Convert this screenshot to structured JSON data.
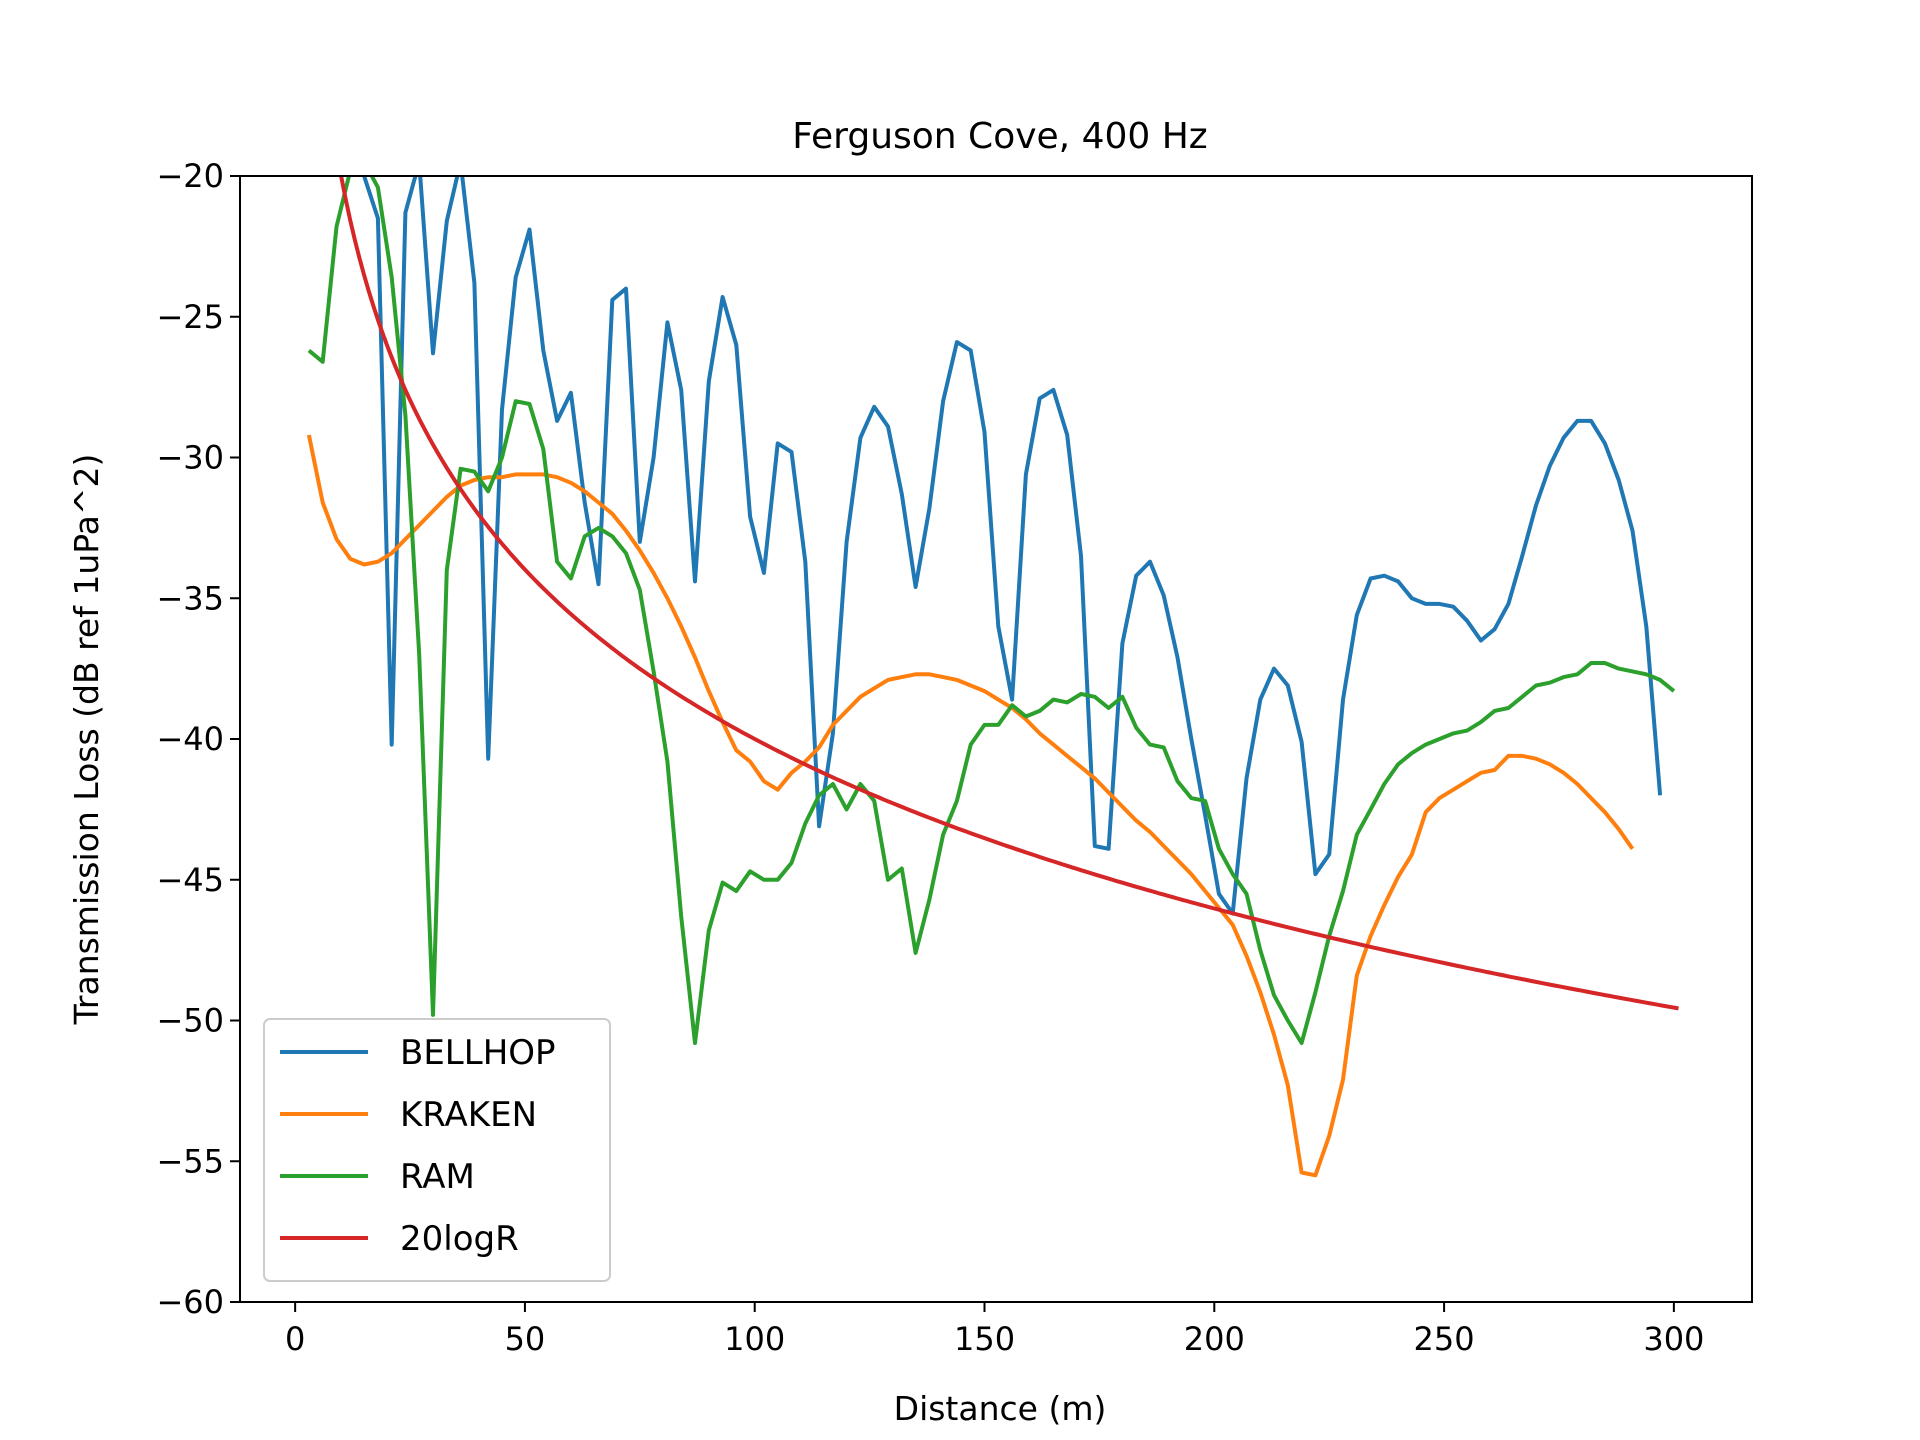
{
  "chart_data": {
    "type": "line",
    "title": "Ferguson Cove, 400 Hz",
    "xlabel": "Distance (m)",
    "ylabel": "Transmission Loss (dB ref 1uPa^2)",
    "xlim": [
      -12,
      317
    ],
    "ylim": [
      -60,
      -20
    ],
    "xticks": [
      0,
      50,
      100,
      150,
      200,
      250,
      300
    ],
    "yticks": [
      -20,
      -25,
      -30,
      -35,
      -40,
      -45,
      -50,
      -55,
      -60
    ],
    "xtick_labels": [
      "0",
      "50",
      "100",
      "150",
      "200",
      "250",
      "300"
    ],
    "ytick_labels": [
      "−20",
      "−25",
      "−30",
      "−35",
      "−40",
      "−45",
      "−50",
      "−55",
      "−60"
    ],
    "grid": false,
    "legend_position": "lower-left",
    "series": [
      {
        "name": "BELLHOP",
        "color": "#1f77b4",
        "points": [
          [
            9,
            -19.5
          ],
          [
            12,
            -19.6
          ],
          [
            15,
            -20
          ],
          [
            18,
            -21.5
          ],
          [
            21,
            -40.2
          ],
          [
            24,
            -21.3
          ],
          [
            27,
            -19.5
          ],
          [
            30,
            -26.3
          ],
          [
            33,
            -21.6
          ],
          [
            36,
            -19.5
          ],
          [
            39,
            -23.8
          ],
          [
            42,
            -40.7
          ],
          [
            45,
            -28.3
          ],
          [
            48,
            -23.6
          ],
          [
            51,
            -21.9
          ],
          [
            54,
            -26.2
          ],
          [
            57,
            -28.7
          ],
          [
            60,
            -27.7
          ],
          [
            63,
            -31.6
          ],
          [
            66,
            -34.5
          ],
          [
            69,
            -24.4
          ],
          [
            72,
            -24
          ],
          [
            75,
            -33
          ],
          [
            78,
            -30
          ],
          [
            81,
            -25.2
          ],
          [
            84,
            -27.6
          ],
          [
            87,
            -34.4
          ],
          [
            90,
            -27.3
          ],
          [
            93,
            -24.3
          ],
          [
            96,
            -26
          ],
          [
            99,
            -32.1
          ],
          [
            102,
            -34.1
          ],
          [
            105,
            -29.5
          ],
          [
            108,
            -29.8
          ],
          [
            111,
            -33.7
          ],
          [
            114,
            -43.1
          ],
          [
            117,
            -39.8
          ],
          [
            120,
            -33
          ],
          [
            123,
            -29.3
          ],
          [
            126,
            -28.2
          ],
          [
            129,
            -28.9
          ],
          [
            132,
            -31.3
          ],
          [
            135,
            -34.6
          ],
          [
            138,
            -31.8
          ],
          [
            141,
            -28
          ],
          [
            144,
            -25.9
          ],
          [
            147,
            -26.2
          ],
          [
            150,
            -29.1
          ],
          [
            153,
            -36
          ],
          [
            156,
            -38.6
          ],
          [
            159,
            -30.6
          ],
          [
            162,
            -27.9
          ],
          [
            165,
            -27.6
          ],
          [
            168,
            -29.2
          ],
          [
            171,
            -33.5
          ],
          [
            174,
            -43.8
          ],
          [
            177,
            -43.9
          ],
          [
            180,
            -36.6
          ],
          [
            183,
            -34.2
          ],
          [
            186,
            -33.7
          ],
          [
            189,
            -34.9
          ],
          [
            192,
            -37.1
          ],
          [
            195,
            -40
          ],
          [
            198,
            -42.7
          ],
          [
            201,
            -45.5
          ],
          [
            204,
            -46.2
          ],
          [
            207,
            -41.4
          ],
          [
            210,
            -38.6
          ],
          [
            213,
            -37.5
          ],
          [
            216,
            -38.1
          ],
          [
            219,
            -40.1
          ],
          [
            222,
            -44.8
          ],
          [
            225,
            -44.1
          ],
          [
            228,
            -38.6
          ],
          [
            231,
            -35.6
          ],
          [
            234,
            -34.3
          ],
          [
            237,
            -34.2
          ],
          [
            240,
            -34.4
          ],
          [
            243,
            -35
          ],
          [
            246,
            -35.2
          ],
          [
            249,
            -35.2
          ],
          [
            252,
            -35.3
          ],
          [
            255,
            -35.8
          ],
          [
            258,
            -36.5
          ],
          [
            261,
            -36.1
          ],
          [
            264,
            -35.2
          ],
          [
            267,
            -33.5
          ],
          [
            270,
            -31.7
          ],
          [
            273,
            -30.3
          ],
          [
            276,
            -29.3
          ],
          [
            279,
            -28.7
          ],
          [
            282,
            -28.7
          ],
          [
            285,
            -29.5
          ],
          [
            288,
            -30.8
          ],
          [
            291,
            -32.6
          ],
          [
            294,
            -36
          ],
          [
            297,
            -42
          ]
        ]
      },
      {
        "name": "KRAKEN",
        "color": "#ff7f0e",
        "points": [
          [
            3,
            -29.2
          ],
          [
            6,
            -31.6
          ],
          [
            9,
            -32.9
          ],
          [
            12,
            -33.6
          ],
          [
            15,
            -33.8
          ],
          [
            18,
            -33.7
          ],
          [
            21,
            -33.4
          ],
          [
            24,
            -32.9
          ],
          [
            27,
            -32.4
          ],
          [
            30,
            -31.9
          ],
          [
            33,
            -31.4
          ],
          [
            36,
            -31
          ],
          [
            39,
            -30.8
          ],
          [
            42,
            -30.7
          ],
          [
            45,
            -30.7
          ],
          [
            48,
            -30.6
          ],
          [
            51,
            -30.6
          ],
          [
            54,
            -30.6
          ],
          [
            57,
            -30.7
          ],
          [
            60,
            -30.9
          ],
          [
            63,
            -31.2
          ],
          [
            66,
            -31.6
          ],
          [
            69,
            -32
          ],
          [
            72,
            -32.6
          ],
          [
            75,
            -33.3
          ],
          [
            78,
            -34.1
          ],
          [
            81,
            -35
          ],
          [
            84,
            -36
          ],
          [
            87,
            -37.1
          ],
          [
            90,
            -38.3
          ],
          [
            93,
            -39.4
          ],
          [
            96,
            -40.4
          ],
          [
            99,
            -40.8
          ],
          [
            102,
            -41.5
          ],
          [
            105,
            -41.8
          ],
          [
            108,
            -41.2
          ],
          [
            111,
            -40.8
          ],
          [
            114,
            -40.3
          ],
          [
            117,
            -39.5
          ],
          [
            120,
            -39
          ],
          [
            123,
            -38.5
          ],
          [
            126,
            -38.2
          ],
          [
            129,
            -37.9
          ],
          [
            132,
            -37.8
          ],
          [
            135,
            -37.7
          ],
          [
            138,
            -37.7
          ],
          [
            141,
            -37.8
          ],
          [
            144,
            -37.9
          ],
          [
            147,
            -38.1
          ],
          [
            150,
            -38.3
          ],
          [
            153,
            -38.6
          ],
          [
            156,
            -38.9
          ],
          [
            159,
            -39.3
          ],
          [
            162,
            -39.8
          ],
          [
            165,
            -40.2
          ],
          [
            168,
            -40.6
          ],
          [
            171,
            -41
          ],
          [
            174,
            -41.4
          ],
          [
            177,
            -41.9
          ],
          [
            180,
            -42.4
          ],
          [
            183,
            -42.9
          ],
          [
            186,
            -43.3
          ],
          [
            189,
            -43.8
          ],
          [
            192,
            -44.3
          ],
          [
            195,
            -44.8
          ],
          [
            198,
            -45.4
          ],
          [
            201,
            -46
          ],
          [
            204,
            -46.6
          ],
          [
            207,
            -47.7
          ],
          [
            210,
            -49
          ],
          [
            213,
            -50.5
          ],
          [
            216,
            -52.3
          ],
          [
            219,
            -55.4
          ],
          [
            222,
            -55.5
          ],
          [
            225,
            -54.1
          ],
          [
            228,
            -52.1
          ],
          [
            231,
            -48.4
          ],
          [
            234,
            -47
          ],
          [
            237,
            -45.9
          ],
          [
            240,
            -44.9
          ],
          [
            243,
            -44.1
          ],
          [
            246,
            -42.6
          ],
          [
            249,
            -42.1
          ],
          [
            252,
            -41.8
          ],
          [
            255,
            -41.5
          ],
          [
            258,
            -41.2
          ],
          [
            261,
            -41.1
          ],
          [
            264,
            -40.6
          ],
          [
            267,
            -40.6
          ],
          [
            270,
            -40.7
          ],
          [
            273,
            -40.9
          ],
          [
            276,
            -41.2
          ],
          [
            279,
            -41.6
          ],
          [
            282,
            -42.1
          ],
          [
            285,
            -42.6
          ],
          [
            288,
            -43.2
          ],
          [
            291,
            -43.9
          ]
        ]
      },
      {
        "name": "RAM",
        "color": "#2ca02c",
        "points": [
          [
            3,
            -26.2
          ],
          [
            6,
            -26.6
          ],
          [
            9,
            -21.8
          ],
          [
            12,
            -19.8
          ],
          [
            15,
            -19.5
          ],
          [
            18,
            -20.4
          ],
          [
            21,
            -23.6
          ],
          [
            24,
            -28.5
          ],
          [
            27,
            -37
          ],
          [
            30,
            -49.8
          ],
          [
            33,
            -34
          ],
          [
            36,
            -30.4
          ],
          [
            39,
            -30.5
          ],
          [
            42,
            -31.2
          ],
          [
            45,
            -30
          ],
          [
            48,
            -28
          ],
          [
            51,
            -28.1
          ],
          [
            54,
            -29.7
          ],
          [
            57,
            -33.7
          ],
          [
            60,
            -34.3
          ],
          [
            63,
            -32.8
          ],
          [
            66,
            -32.5
          ],
          [
            69,
            -32.8
          ],
          [
            72,
            -33.4
          ],
          [
            75,
            -34.7
          ],
          [
            78,
            -37.6
          ],
          [
            81,
            -40.8
          ],
          [
            84,
            -46.3
          ],
          [
            87,
            -50.8
          ],
          [
            90,
            -46.8
          ],
          [
            93,
            -45.1
          ],
          [
            96,
            -45.4
          ],
          [
            99,
            -44.7
          ],
          [
            102,
            -45
          ],
          [
            105,
            -45
          ],
          [
            108,
            -44.4
          ],
          [
            111,
            -43
          ],
          [
            114,
            -42
          ],
          [
            117,
            -41.6
          ],
          [
            120,
            -42.5
          ],
          [
            123,
            -41.6
          ],
          [
            126,
            -42.2
          ],
          [
            129,
            -45
          ],
          [
            132,
            -44.6
          ],
          [
            135,
            -47.6
          ],
          [
            138,
            -45.7
          ],
          [
            141,
            -43.4
          ],
          [
            144,
            -42.2
          ],
          [
            147,
            -40.2
          ],
          [
            150,
            -39.5
          ],
          [
            153,
            -39.5
          ],
          [
            156,
            -38.8
          ],
          [
            159,
            -39.2
          ],
          [
            162,
            -39
          ],
          [
            165,
            -38.6
          ],
          [
            168,
            -38.7
          ],
          [
            171,
            -38.4
          ],
          [
            174,
            -38.5
          ],
          [
            177,
            -38.9
          ],
          [
            180,
            -38.5
          ],
          [
            183,
            -39.6
          ],
          [
            186,
            -40.2
          ],
          [
            189,
            -40.3
          ],
          [
            192,
            -41.5
          ],
          [
            195,
            -42.1
          ],
          [
            198,
            -42.2
          ],
          [
            201,
            -43.9
          ],
          [
            204,
            -44.8
          ],
          [
            207,
            -45.5
          ],
          [
            210,
            -47.5
          ],
          [
            213,
            -49.1
          ],
          [
            216,
            -50
          ],
          [
            219,
            -50.8
          ],
          [
            222,
            -49
          ],
          [
            225,
            -47
          ],
          [
            228,
            -45.4
          ],
          [
            231,
            -43.4
          ],
          [
            234,
            -42.5
          ],
          [
            237,
            -41.6
          ],
          [
            240,
            -40.9
          ],
          [
            243,
            -40.5
          ],
          [
            246,
            -40.2
          ],
          [
            249,
            -40
          ],
          [
            252,
            -39.8
          ],
          [
            255,
            -39.7
          ],
          [
            258,
            -39.4
          ],
          [
            261,
            -39
          ],
          [
            264,
            -38.9
          ],
          [
            267,
            -38.5
          ],
          [
            270,
            -38.1
          ],
          [
            273,
            -38
          ],
          [
            276,
            -37.8
          ],
          [
            279,
            -37.7
          ],
          [
            282,
            -37.3
          ],
          [
            285,
            -37.3
          ],
          [
            288,
            -37.5
          ],
          [
            291,
            -37.6
          ],
          [
            294,
            -37.7
          ],
          [
            297,
            -37.9
          ],
          [
            300,
            -38.3
          ]
        ]
      },
      {
        "name": "20logR",
        "color": "#d62728",
        "curve": "-20*log10(x)",
        "x_range": [
          10,
          301
        ]
      }
    ]
  }
}
